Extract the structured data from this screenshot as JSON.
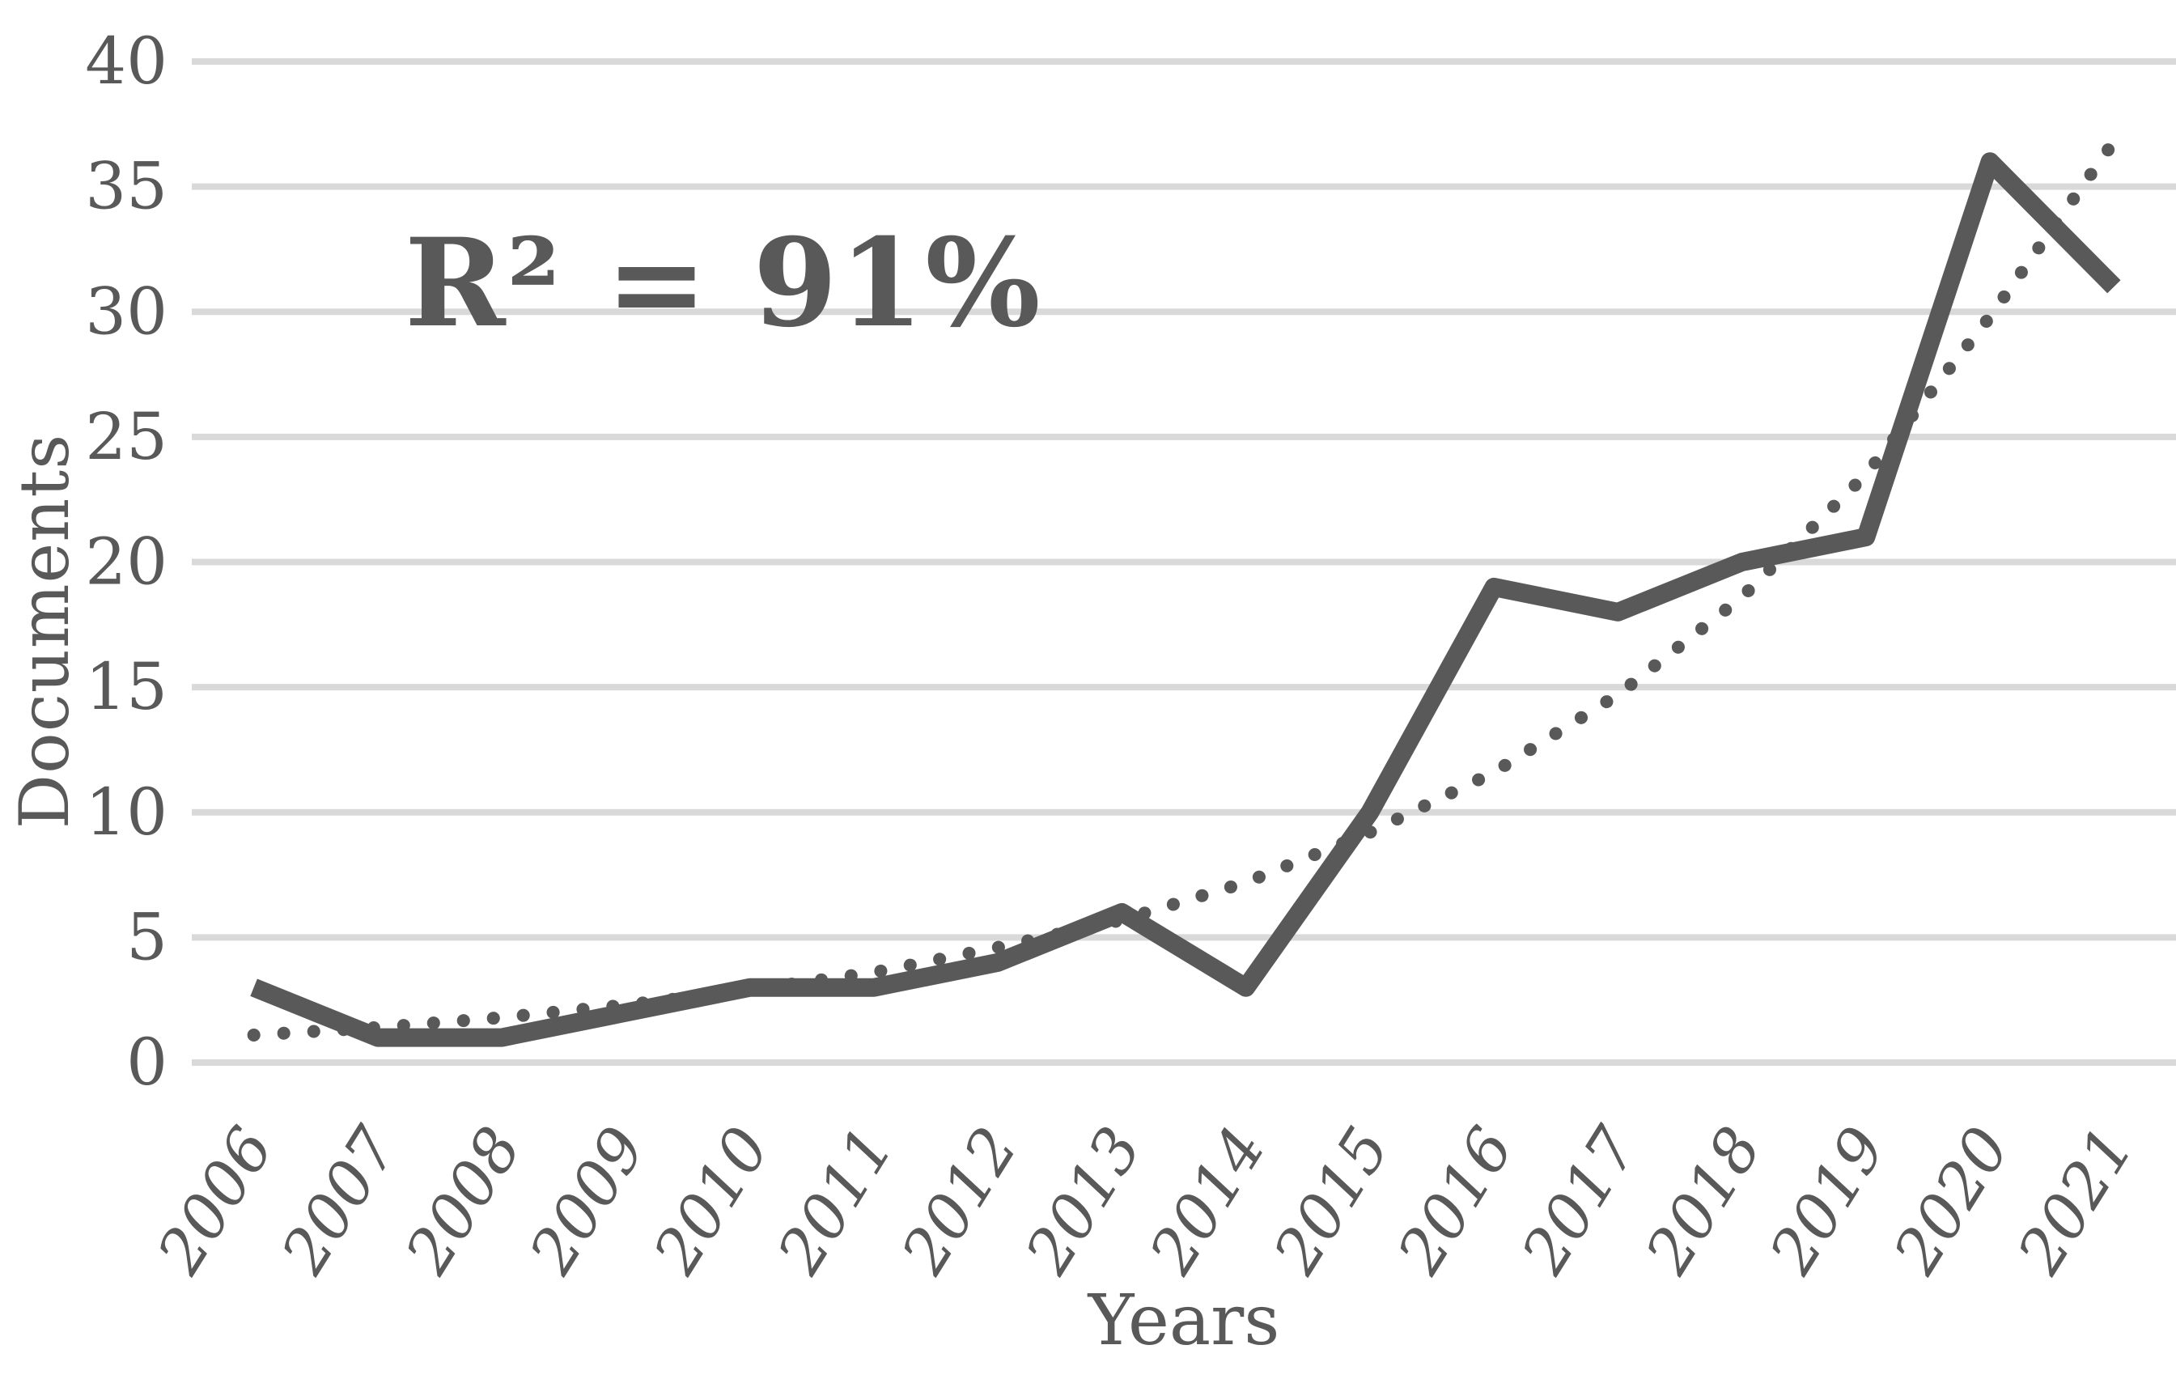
{
  "chart_data": {
    "type": "line",
    "title": "",
    "annotation": "R² = 91%",
    "xlabel": "Years",
    "ylabel": "Documents",
    "categories": [
      "2006",
      "2007",
      "2008",
      "2009",
      "2010",
      "2011",
      "2012",
      "2013",
      "2014",
      "2015",
      "2016",
      "2017",
      "2018",
      "2019",
      "2020",
      "2021"
    ],
    "series": [
      {
        "name": "Documents",
        "style": "solid",
        "values": [
          3,
          1,
          1,
          2,
          3,
          3,
          4,
          6,
          3,
          10,
          19,
          18,
          20,
          21,
          36,
          31
        ]
      },
      {
        "name": "Trendline",
        "style": "dotted",
        "values": [
          1.1,
          1.4,
          1.8,
          2.3,
          2.9,
          3.6,
          4.6,
          5.7,
          7.2,
          9.2,
          11.6,
          14.7,
          18.6,
          23.5,
          29.8,
          36.8
        ]
      }
    ],
    "ylim": [
      0,
      40
    ],
    "yticks": [
      0,
      5,
      10,
      15,
      20,
      25,
      30,
      35,
      40
    ],
    "grid": true,
    "legend": "none",
    "colors": {
      "series": "#595959",
      "trendline": "#595959",
      "gridline": "#d9d9d9",
      "text": "#595959",
      "background": "#ffffff"
    }
  }
}
